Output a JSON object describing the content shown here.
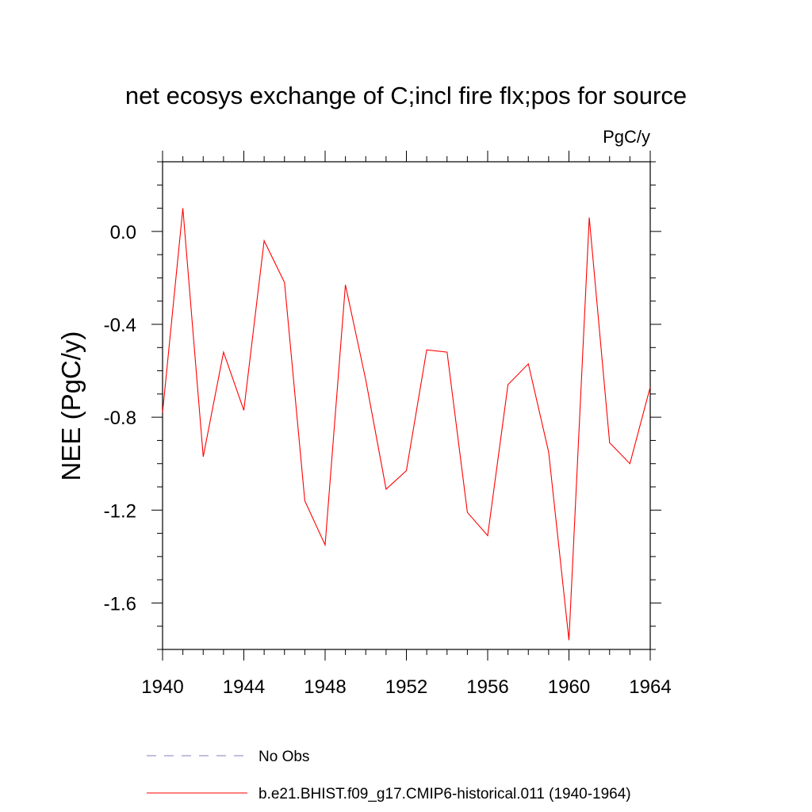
{
  "chart_data": {
    "type": "line",
    "title": "net ecosys exchange of C;incl fire flx;pos for source",
    "units": "PgC/y",
    "xlabel": "",
    "ylabel": "NEE  (PgC/y)",
    "xlim": [
      1940,
      1964
    ],
    "ylim": [
      -1.8,
      0.3
    ],
    "x_ticks": [
      1940,
      1944,
      1948,
      1952,
      1956,
      1960,
      1964
    ],
    "x_tick_labels": [
      "1940",
      "1944",
      "1948",
      "1952",
      "1956",
      "1960",
      "1964"
    ],
    "y_ticks": [
      0.0,
      -0.4,
      -0.8,
      -1.2,
      -1.6
    ],
    "y_tick_labels": [
      "0.0",
      "-0.4",
      "-0.8",
      "-1.2",
      "-1.6"
    ],
    "grid": false,
    "legend_position": "bottom",
    "series": [
      {
        "name": "No Obs",
        "color": "#7f7fbf",
        "style": "dashed",
        "x": [],
        "values": []
      },
      {
        "name": "b.e21.BHIST.f09_g17.CMIP6-historical.011 (1940-1964)",
        "color": "#ff0000",
        "style": "solid",
        "x": [
          1940,
          1941,
          1942,
          1943,
          1944,
          1945,
          1946,
          1947,
          1948,
          1949,
          1950,
          1951,
          1952,
          1953,
          1954,
          1955,
          1956,
          1957,
          1958,
          1959,
          1960,
          1961,
          1962,
          1963,
          1964
        ],
        "values": [
          -0.78,
          0.1,
          -0.97,
          -0.52,
          -0.77,
          -0.04,
          -0.22,
          -1.16,
          -1.35,
          -0.23,
          -0.64,
          -1.11,
          -1.03,
          -0.51,
          -0.52,
          -1.21,
          -1.31,
          -0.66,
          -0.57,
          -0.95,
          -1.76,
          0.06,
          -0.91,
          -1.0,
          -0.67
        ]
      }
    ]
  }
}
